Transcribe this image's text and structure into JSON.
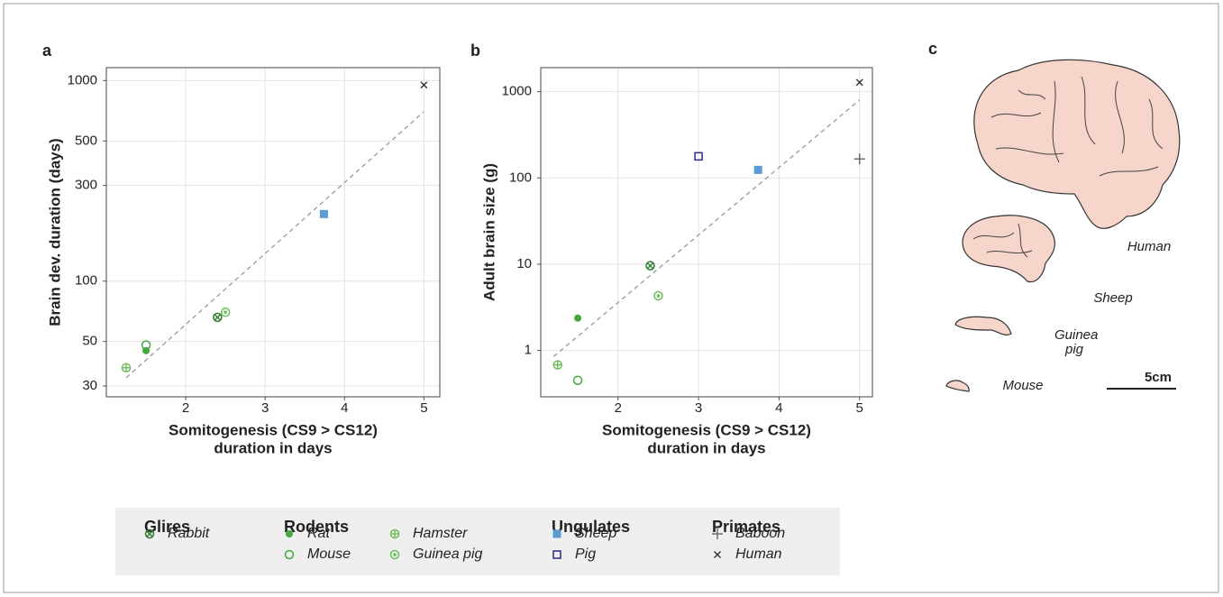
{
  "chart_data": [
    {
      "type": "scatter",
      "panel_label": "a",
      "y_label": "Brain dev. duration (days)",
      "x_label": [
        "Somitogenesis (CS9 > CS12)",
        "duration in days"
      ],
      "xlim": [
        1,
        5.2
      ],
      "xticks": [
        2,
        3,
        4,
        5
      ],
      "ylim": [
        26.5,
        1160
      ],
      "yticks": [
        30,
        50,
        100,
        300,
        500,
        1000
      ],
      "log_y": true,
      "grid": true,
      "series": [
        {
          "name": "Rabbit",
          "color": "#2e7d32",
          "marker": "circle-x",
          "x": [
            2.4
          ],
          "values": [
            66
          ]
        },
        {
          "name": "Rat",
          "color": "#43a83f",
          "marker": "circle-filled",
          "x": [
            1.5
          ],
          "values": [
            45
          ]
        },
        {
          "name": "Mouse",
          "color": "#43a83f",
          "marker": "circle-open",
          "x": [
            1.5
          ],
          "values": [
            48
          ]
        },
        {
          "name": "Hamster",
          "color": "#6cbf5a",
          "marker": "circle-plus",
          "x": [
            1.25
          ],
          "values": [
            37
          ]
        },
        {
          "name": "Guinea pig",
          "color": "#6cbf5a",
          "marker": "circle-dot",
          "x": [
            2.5
          ],
          "values": [
            70
          ]
        },
        {
          "name": "Sheep",
          "color": "#5b9bd5",
          "marker": "square-filled",
          "x": [
            3.74
          ],
          "values": [
            216
          ]
        },
        {
          "name": "Human",
          "color": "#333333",
          "marker": "x",
          "x": [
            5
          ],
          "values": [
            950
          ]
        }
      ],
      "fit": {
        "color": "#999999",
        "x": [
          1.25,
          5
        ],
        "values": [
          33,
          700
        ]
      }
    },
    {
      "type": "scatter",
      "panel_label": "b",
      "y_label": "Adult brain size (g)",
      "x_label": [
        "Somitogenesis (CS9 > CS12)",
        "duration in days"
      ],
      "xlim": [
        1.04,
        5.16
      ],
      "xticks": [
        2,
        3,
        4,
        5
      ],
      "ylim": [
        0.29,
        1900
      ],
      "yticks": [
        1,
        10,
        100,
        1000
      ],
      "log_y": true,
      "grid": true,
      "series": [
        {
          "name": "Rabbit",
          "color": "#2e7d32",
          "marker": "circle-x",
          "x": [
            2.4
          ],
          "values": [
            9.6
          ]
        },
        {
          "name": "Rat",
          "color": "#43a83f",
          "marker": "circle-filled",
          "x": [
            1.5
          ],
          "values": [
            2.37
          ]
        },
        {
          "name": "Mouse",
          "color": "#43a83f",
          "marker": "circle-open",
          "x": [
            1.5
          ],
          "values": [
            0.45
          ]
        },
        {
          "name": "Hamster",
          "color": "#6cbf5a",
          "marker": "circle-plus",
          "x": [
            1.25
          ],
          "values": [
            0.68
          ]
        },
        {
          "name": "Guinea pig",
          "color": "#6cbf5a",
          "marker": "circle-dot",
          "x": [
            2.5
          ],
          "values": [
            4.3
          ]
        },
        {
          "name": "Sheep",
          "color": "#5b9bd5",
          "marker": "square-filled",
          "x": [
            3.74
          ],
          "values": [
            124
          ]
        },
        {
          "name": "Pig",
          "color": "#2b2b8c",
          "marker": "square-open",
          "x": [
            3
          ],
          "values": [
            178
          ]
        },
        {
          "name": "Baboon",
          "color": "#666666",
          "marker": "plus",
          "x": [
            5
          ],
          "values": [
            166
          ]
        },
        {
          "name": "Human",
          "color": "#333333",
          "marker": "x",
          "x": [
            5
          ],
          "values": [
            1280
          ]
        }
      ],
      "fit": {
        "color": "#999999",
        "x": [
          1.2,
          5
        ],
        "values": [
          0.85,
          800
        ]
      }
    }
  ],
  "legend": {
    "groups": [
      {
        "title": "Glires",
        "columns": [
          [
            "Rabbit"
          ]
        ]
      },
      {
        "title": "Rodents",
        "columns": [
          [
            "Rat",
            "Mouse"
          ],
          [
            "Hamster",
            "Guinea pig"
          ]
        ]
      },
      {
        "title": "Ungulates",
        "columns": [
          [
            "Sheep",
            "Pig"
          ]
        ]
      },
      {
        "title": "Primates",
        "columns": [
          [
            "Baboon",
            "Human"
          ]
        ]
      }
    ]
  },
  "panel_c": {
    "label": "c",
    "brains": [
      "Human",
      "Sheep",
      "Guinea pig",
      "Mouse"
    ],
    "scale_bar": "5cm"
  }
}
